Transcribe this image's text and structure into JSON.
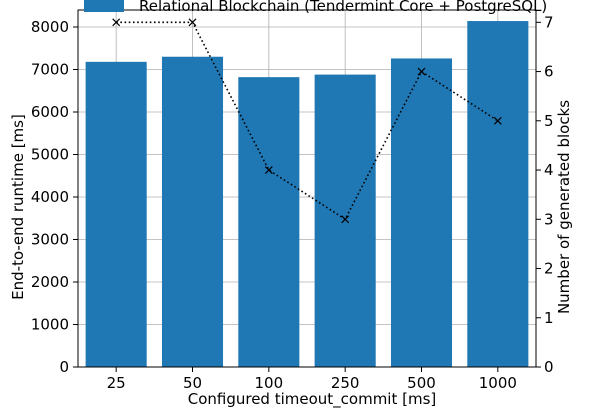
{
  "chart_data": {
    "type": "bar",
    "categories": [
      "25",
      "50",
      "100",
      "250",
      "500",
      "1000"
    ],
    "series": [
      {
        "name": "Relational Blockchain (Tendermint Core + PostgreSQL)",
        "type": "bar",
        "axis": "left",
        "values": [
          7180,
          7300,
          6820,
          6880,
          7260,
          8140
        ],
        "color": "#1f77b4"
      },
      {
        "type": "line",
        "axis": "right",
        "values": [
          7,
          7,
          4,
          3,
          6,
          5
        ],
        "color": "#000000",
        "linestyle": "dotted",
        "marker": "x"
      }
    ],
    "xlabel": "Configured timeout_commit [ms]",
    "ylabel": "End-to-end runtime [ms]",
    "ylabel_right": "Number of generated blocks",
    "ylim": [
      0,
      8400
    ],
    "ylim_right": [
      0,
      7.25
    ],
    "yticks": [
      "0",
      "1000",
      "2000",
      "3000",
      "4000",
      "5000",
      "6000",
      "7000",
      "8000"
    ],
    "yticks_right": [
      "0",
      "1",
      "2",
      "3",
      "4",
      "5",
      "6",
      "7"
    ],
    "grid": true,
    "legend": "top"
  }
}
